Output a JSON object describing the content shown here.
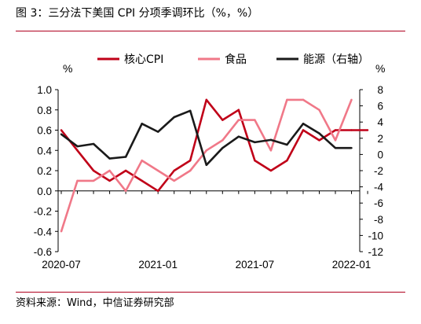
{
  "header": {
    "title": "图 3：三分法下美国 CPI 分项季调环比（%，%）"
  },
  "footer": {
    "source": "资料来源：Wind，中信证券研究部"
  },
  "chart_data": {
    "type": "line",
    "left_axis": {
      "unit": "%",
      "ylim": [
        -0.6,
        1.0
      ],
      "ticks": [
        -0.6,
        -0.4,
        -0.2,
        0.0,
        0.2,
        0.4,
        0.6,
        0.8,
        1.0
      ],
      "tick_labels": [
        "-0.6",
        "-0.4",
        "-0.2",
        "0.0",
        "0.2",
        "0.4",
        "0.6",
        "0.8",
        "1.0"
      ]
    },
    "right_axis": {
      "unit": "%",
      "ylim": [
        -12,
        8
      ],
      "ticks": [
        -12,
        -10,
        -8,
        -6,
        -4,
        -2,
        0,
        2,
        4,
        6,
        8
      ],
      "tick_labels": [
        "-12",
        "-10",
        "-8",
        "-6",
        "-4",
        "-2",
        "0",
        "2",
        "4",
        "6",
        "8"
      ]
    },
    "x": [
      "2020-07",
      "2020-08",
      "2020-09",
      "2020-10",
      "2020-11",
      "2020-12",
      "2021-01",
      "2021-02",
      "2021-03",
      "2021-04",
      "2021-05",
      "2021-06",
      "2021-07",
      "2021-08",
      "2021-09",
      "2021-10",
      "2021-11",
      "2021-12",
      "2022-01",
      "2022-02"
    ],
    "x_tick_labels": [
      "2020-07",
      "2021-01",
      "2021-07",
      "2022-01"
    ],
    "series": [
      {
        "name": "核心CPI",
        "axis": "left",
        "color": "#c00018",
        "values": [
          0.6,
          0.4,
          0.2,
          0.1,
          0.2,
          0.1,
          0.0,
          0.2,
          0.3,
          0.9,
          0.7,
          0.8,
          0.3,
          0.2,
          0.3,
          0.6,
          0.5,
          0.6,
          0.6,
          0.6
        ]
      },
      {
        "name": "食品",
        "axis": "left",
        "color": "#f07888",
        "values": [
          -0.4,
          0.1,
          0.1,
          0.2,
          0.0,
          0.3,
          0.2,
          0.1,
          0.2,
          0.4,
          0.5,
          0.7,
          0.7,
          0.4,
          0.9,
          0.9,
          0.8,
          0.5,
          0.9,
          null
        ]
      },
      {
        "name": "能源（右轴）",
        "axis": "right",
        "color": "#1a1a1a",
        "values": [
          2.5,
          1.0,
          1.3,
          -0.5,
          -0.3,
          3.8,
          2.8,
          4.6,
          5.4,
          -1.3,
          0.8,
          2.2,
          1.5,
          1.8,
          1.2,
          3.8,
          2.6,
          0.8,
          0.8,
          null
        ]
      }
    ],
    "legend": {
      "placement": "top"
    },
    "grid": false
  }
}
